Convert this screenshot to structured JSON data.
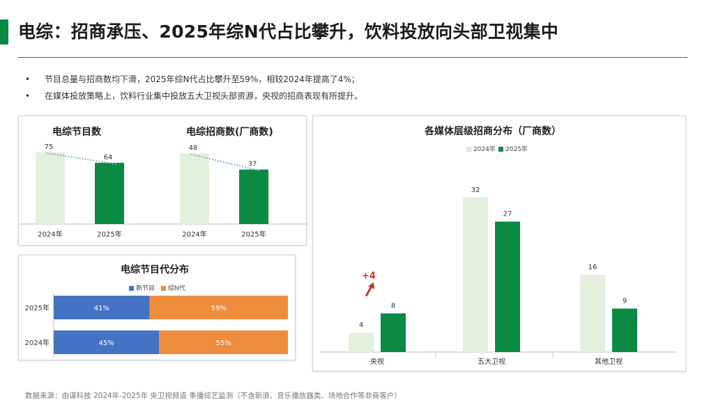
{
  "slide": {
    "title": "电综：招商承压、2025年综N代占比攀升，饮料投放向头部卫视集中",
    "bullets": [
      "节目总量与招商数均下滑，2025年综N代占比攀升至59%，相较2024年提高了4%；",
      "在媒体投放策略上，饮料行业集中投放五大卫视头部资源，央视的招商表现有所提升。"
    ],
    "bullet_marker": "•",
    "source": "数据来源：由谋科技 2024年-2025年 央卫视频道 季播综艺监测（不含新浪、音乐播放器类、场地合作等非商客户）",
    "accent_color": "#0a8a43"
  },
  "chart_data": [
    {
      "type": "bar",
      "title": "电综节目数",
      "categories": [
        "2024年",
        "2025年"
      ],
      "values": [
        75,
        64
      ],
      "colors": [
        "#e2f0dc",
        "#0a8a43"
      ],
      "trend_line": true,
      "trend_color": "#7fb2d8",
      "ylim": [
        0,
        80
      ]
    },
    {
      "type": "bar",
      "title": "电综招商数(厂商数)",
      "categories": [
        "2024年",
        "2025年"
      ],
      "values": [
        48,
        37
      ],
      "colors": [
        "#e2f0dc",
        "#0a8a43"
      ],
      "trend_line": true,
      "trend_color": "#7fb2d8",
      "ylim": [
        0,
        52
      ]
    },
    {
      "type": "bar",
      "orientation": "horizontal",
      "stacked": true,
      "title": "电综节目代分布",
      "categories": [
        "2025年",
        "2024年"
      ],
      "series": [
        {
          "name": "新节目",
          "values": [
            41,
            45
          ],
          "labels": [
            "41%",
            "45%"
          ],
          "color": "#4472c4"
        },
        {
          "name": "综N代",
          "values": [
            59,
            55
          ],
          "labels": [
            "59%",
            "55%"
          ],
          "color": "#ed8c3c"
        }
      ],
      "xlim": [
        0,
        100
      ],
      "legend": "top-center"
    },
    {
      "type": "bar",
      "title": "各媒体层级招商分布（厂商数）",
      "categories": [
        "央视",
        "五大卫视",
        "其他卫视"
      ],
      "series": [
        {
          "name": "2024年",
          "values": [
            4,
            32,
            16
          ],
          "color": "#e2f0dc"
        },
        {
          "name": "2025年",
          "values": [
            8,
            27,
            9
          ],
          "color": "#0a8a43"
        }
      ],
      "ylim": [
        0,
        36
      ],
      "legend": "top-center",
      "annotations": [
        {
          "text": "+4",
          "category": "央视",
          "color": "#c0392b"
        }
      ]
    }
  ]
}
